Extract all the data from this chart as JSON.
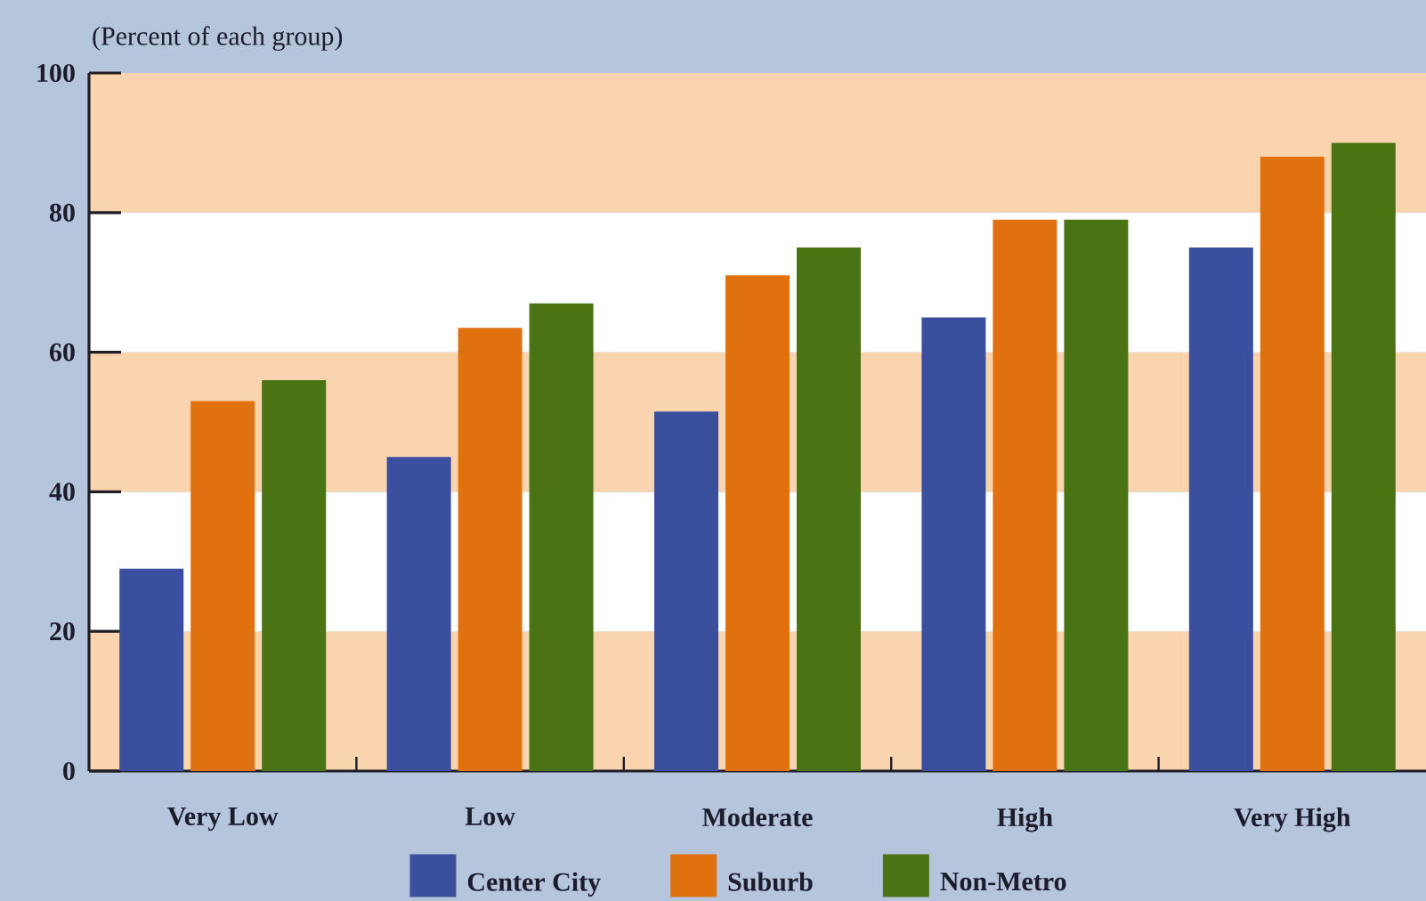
{
  "chart_data": {
    "type": "bar",
    "ylabel": "(Percent of each group)",
    "categories": [
      "Very Low",
      "Low",
      "Moderate",
      "High",
      "Very High"
    ],
    "series": [
      {
        "name": "Center City",
        "color": "#3b4f9f",
        "values": [
          29,
          45,
          51.5,
          65,
          75
        ]
      },
      {
        "name": "Suburb",
        "color": "#e1710f",
        "values": [
          53,
          63.5,
          71,
          79,
          88
        ]
      },
      {
        "name": "Non-Metro",
        "color": "#4a7314",
        "values": [
          56,
          67,
          75,
          79,
          90
        ]
      }
    ],
    "ylim": [
      0,
      100
    ],
    "yticks": [
      0,
      20,
      40,
      60,
      80,
      100
    ],
    "bands": [
      {
        "axis": "y",
        "from": 0,
        "to": 20,
        "color": "#f9d4ae"
      },
      {
        "axis": "y",
        "from": 20,
        "to": 40,
        "color": "#ffffff"
      },
      {
        "axis": "y",
        "from": 40,
        "to": 60,
        "color": "#f9d4ae"
      },
      {
        "axis": "y",
        "from": 60,
        "to": 80,
        "color": "#ffffff"
      },
      {
        "axis": "y",
        "from": 80,
        "to": 100,
        "color": "#f9d4ae"
      }
    ],
    "legend": "bottom"
  }
}
